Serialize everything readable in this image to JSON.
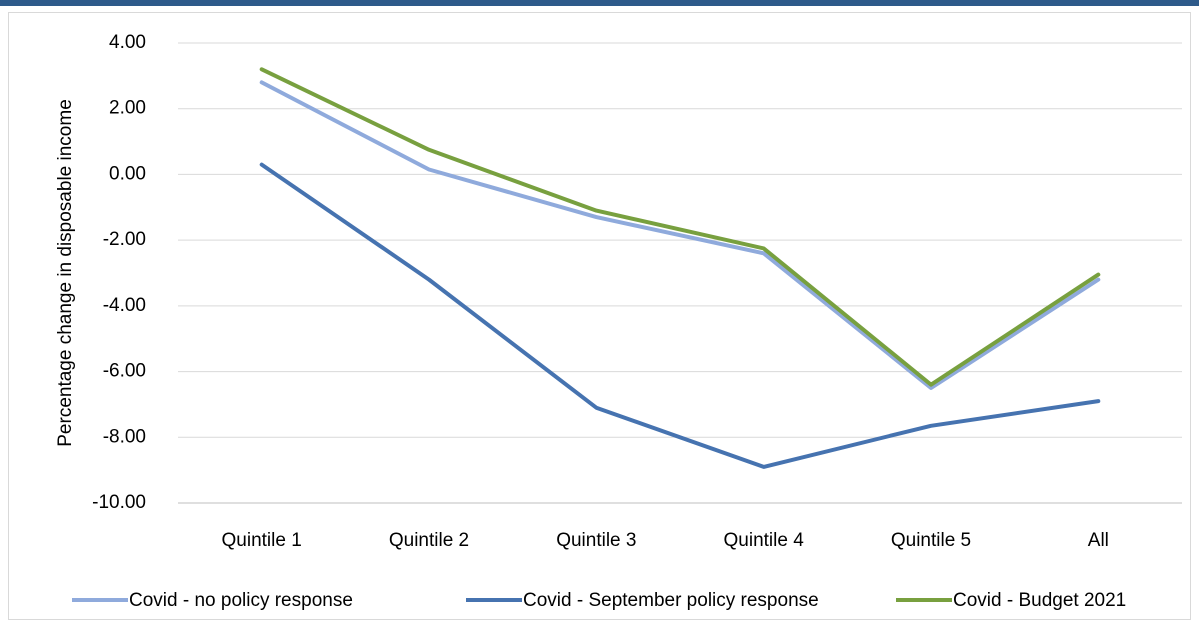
{
  "chart_data": {
    "type": "line",
    "y_label": "Percentage change in disposable income",
    "categories": [
      "Quintile 1",
      "Quintile 2",
      "Quintile 3",
      "Quintile 4",
      "Quintile 5",
      "All"
    ],
    "series": [
      {
        "name": "Covid - no policy response",
        "color": "#8faadc",
        "values": [
          2.8,
          0.15,
          -1.3,
          -2.4,
          -6.5,
          -3.2
        ]
      },
      {
        "name": "Covid - September policy response",
        "color": "#4673b0",
        "values": [
          0.3,
          -3.2,
          -7.1,
          -8.9,
          -7.65,
          -6.9
        ]
      },
      {
        "name": "Covid - Budget 2021",
        "color": "#78a03f",
        "values": [
          3.2,
          0.75,
          -1.1,
          -2.25,
          -6.4,
          -3.05
        ]
      }
    ],
    "ylim": [
      -10,
      4
    ],
    "yticks": [
      {
        "value": -10,
        "label": "-10.00"
      },
      {
        "value": -8,
        "label": "-8.00"
      },
      {
        "value": -6,
        "label": "-6.00"
      },
      {
        "value": -4,
        "label": "-4.00"
      },
      {
        "value": -2,
        "label": "-2.00"
      },
      {
        "value": 0,
        "label": "0.00"
      },
      {
        "value": 2,
        "label": "2.00"
      },
      {
        "value": 4,
        "label": "4.00"
      }
    ],
    "grid": true,
    "legend": "bottom"
  }
}
